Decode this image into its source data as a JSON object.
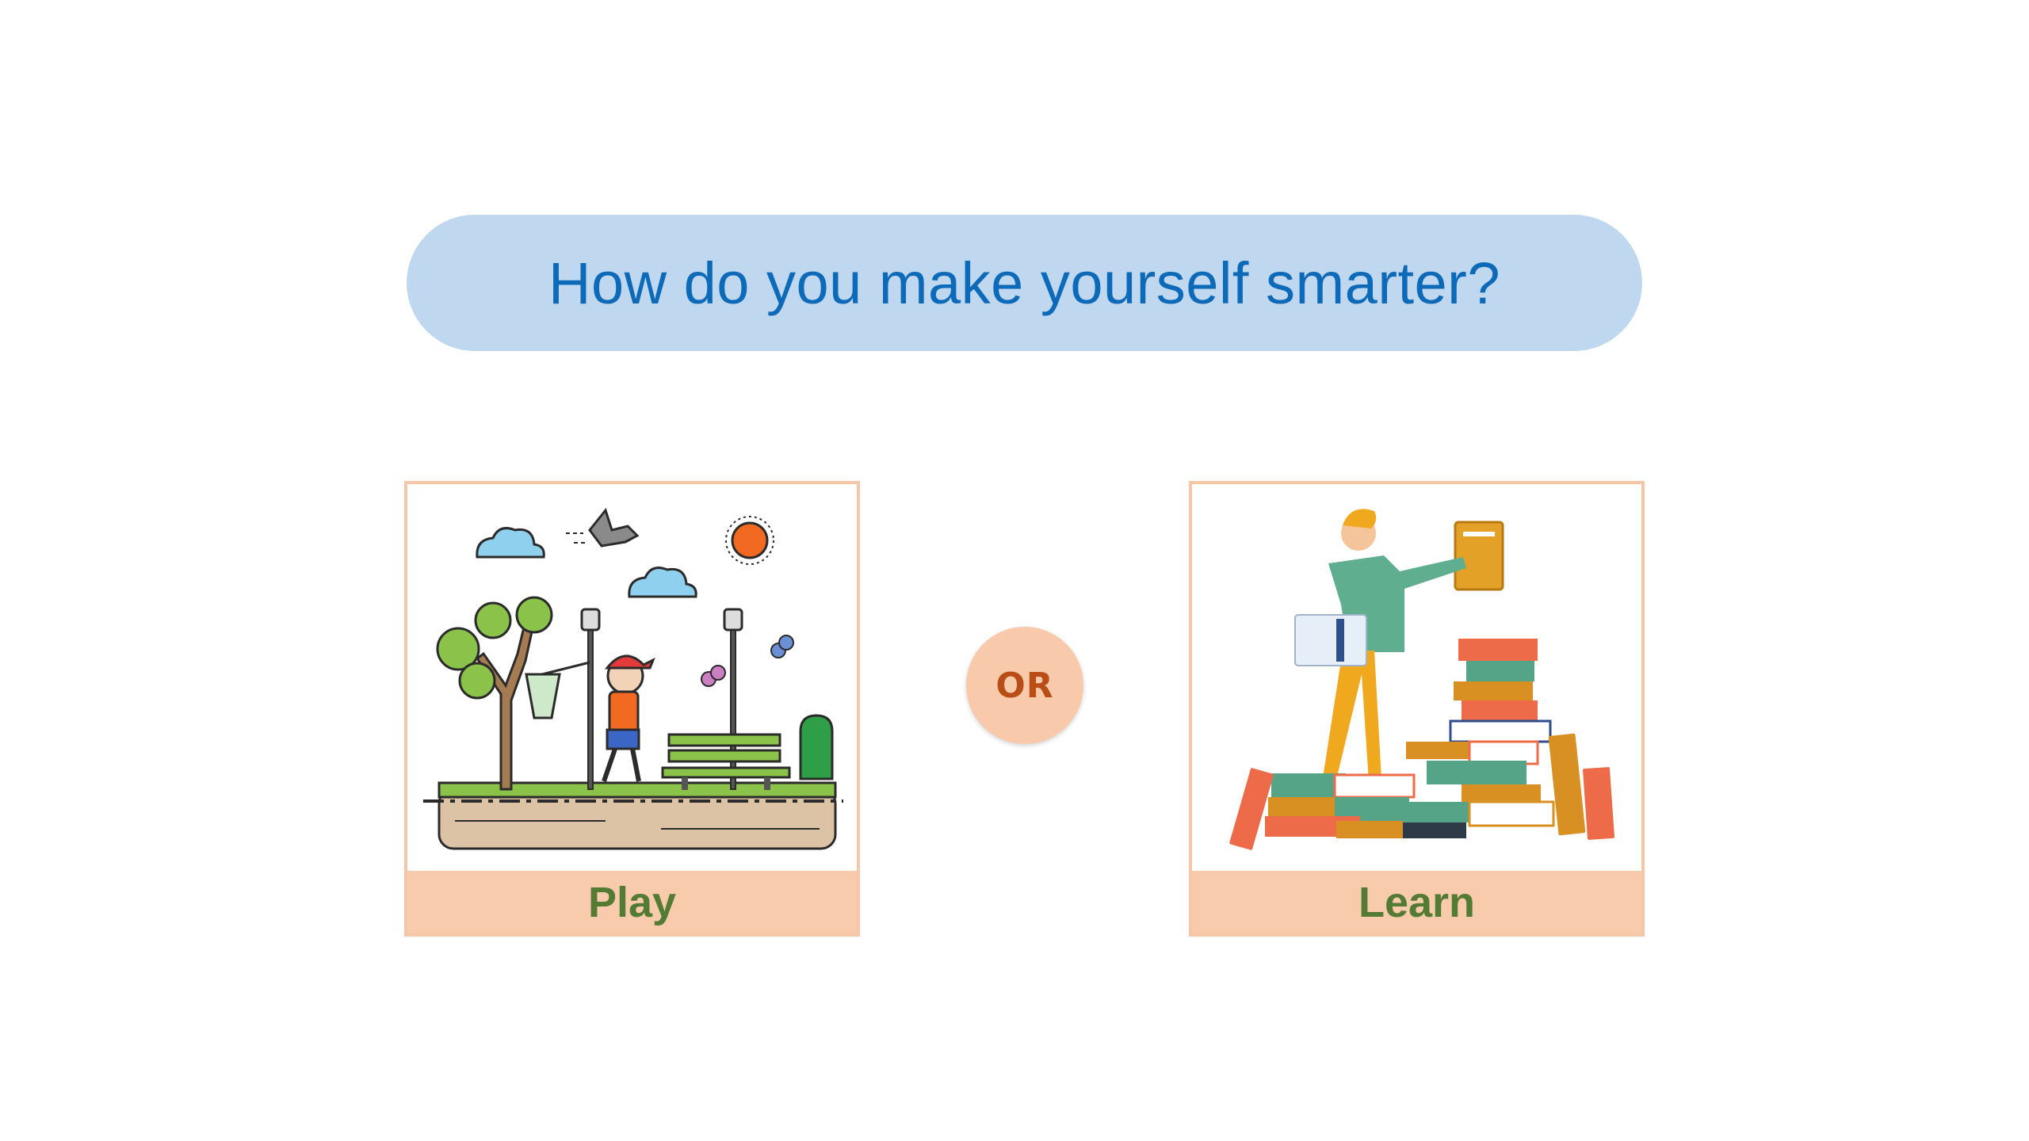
{
  "question": {
    "text": "How do you make yourself smarter?"
  },
  "options": {
    "play": {
      "label": "Play",
      "illustration": "child-in-park-illustration"
    },
    "divider": {
      "text": "OR"
    },
    "learn": {
      "label": "Learn",
      "illustration": "person-with-books-illustration"
    }
  },
  "colors": {
    "pill_bg": "#bfd7ef",
    "question_text": "#0d6ab8",
    "card_border": "#f5c6a8",
    "label_bg": "#f7cbab",
    "label_text": "#537b33",
    "or_bg": "#f8c9ab",
    "or_text": "#b84d16"
  }
}
